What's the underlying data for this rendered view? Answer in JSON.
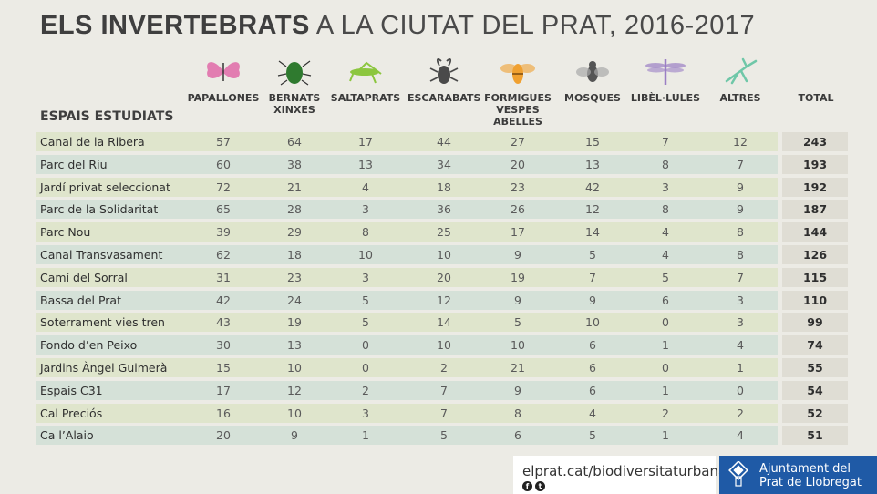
{
  "title": {
    "bold": "ELS INVERTEBRATS",
    "rest": " A LA CIUTAT DEL PRAT, 2016-2017"
  },
  "spaces_header": "ESPAIS ESTUDIATS",
  "columns": [
    {
      "label": "PAPALLONES",
      "icon": "butterfly-icon",
      "color": "#e06aa8"
    },
    {
      "label": "BERNATS\nXINXES",
      "icon": "shield-bug-icon",
      "color": "#2f7a2f"
    },
    {
      "label": "SALTAPRATS",
      "icon": "grasshopper-icon",
      "color": "#8cc63f"
    },
    {
      "label": "ESCARABATS",
      "icon": "stag-beetle-icon",
      "color": "#4a4a4a"
    },
    {
      "label": "FORMIGUES\nVESPES\nABELLES",
      "icon": "bee-icon",
      "color": "#f0a030"
    },
    {
      "label": "MOSQUES",
      "icon": "fly-icon",
      "color": "#555555"
    },
    {
      "label": "LIBÈL·LULES",
      "icon": "dragonfly-icon",
      "color": "#9b7fc4"
    },
    {
      "label": "ALTRES",
      "icon": "mantis-icon",
      "color": "#6fc7a8"
    }
  ],
  "total_label": "TOTAL",
  "rows": [
    {
      "name": "Canal de la Ribera",
      "values": [
        57,
        64,
        17,
        44,
        27,
        15,
        7,
        12
      ],
      "total": 243
    },
    {
      "name": "Parc del Riu",
      "values": [
        60,
        38,
        13,
        34,
        20,
        13,
        8,
        7
      ],
      "total": 193
    },
    {
      "name": "Jardí privat seleccionat",
      "values": [
        72,
        21,
        4,
        18,
        23,
        42,
        3,
        9
      ],
      "total": 192
    },
    {
      "name": "Parc de la Solidaritat",
      "values": [
        65,
        28,
        3,
        36,
        26,
        12,
        8,
        9
      ],
      "total": 187
    },
    {
      "name": "Parc Nou",
      "values": [
        39,
        29,
        8,
        25,
        17,
        14,
        4,
        8
      ],
      "total": 144
    },
    {
      "name": "Canal Transvasament",
      "values": [
        62,
        18,
        10,
        10,
        9,
        5,
        4,
        8
      ],
      "total": 126
    },
    {
      "name": "Camí del Sorral",
      "values": [
        31,
        23,
        3,
        20,
        19,
        7,
        5,
        7
      ],
      "total": 115
    },
    {
      "name": "Bassa del Prat",
      "values": [
        42,
        24,
        5,
        12,
        9,
        9,
        6,
        3
      ],
      "total": 110
    },
    {
      "name": "Soterrament vies tren",
      "values": [
        43,
        19,
        5,
        14,
        5,
        10,
        0,
        3
      ],
      "total": 99
    },
    {
      "name": "Fondo d’en Peixo",
      "values": [
        30,
        13,
        0,
        10,
        10,
        6,
        1,
        4
      ],
      "total": 74
    },
    {
      "name": "Jardins Àngel Guimerà",
      "values": [
        15,
        10,
        0,
        2,
        21,
        6,
        0,
        1
      ],
      "total": 55
    },
    {
      "name": "Espais C31",
      "values": [
        17,
        12,
        2,
        7,
        9,
        6,
        1,
        0
      ],
      "total": 54
    },
    {
      "name": "Cal Preciós",
      "values": [
        16,
        10,
        3,
        7,
        8,
        4,
        2,
        2
      ],
      "total": 52
    },
    {
      "name": "Ca l’Alaio",
      "values": [
        20,
        9,
        1,
        5,
        6,
        5,
        1,
        4
      ],
      "total": 51
    }
  ],
  "footer": {
    "url": "elprat.cat/biodiversitaturbana",
    "social": [
      "f",
      "t"
    ],
    "org_line1": "Ajuntament del",
    "org_line2": "Prat de Llobregat",
    "logo_color": "#1f5aa6"
  }
}
